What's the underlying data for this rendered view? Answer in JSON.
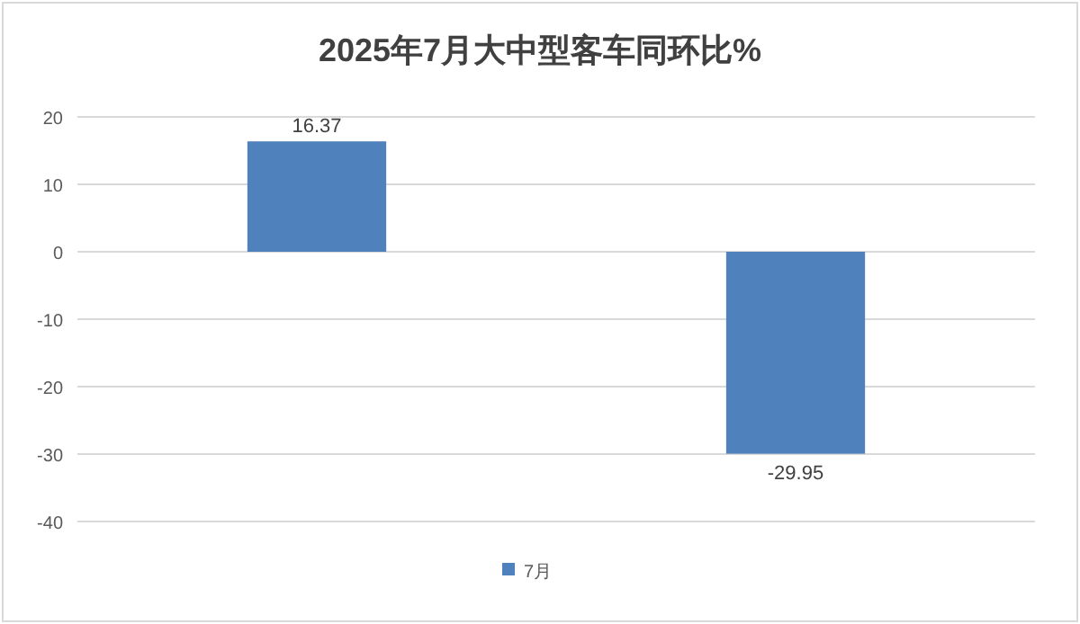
{
  "chart_data": {
    "type": "bar",
    "title": "2025年7月大中型客车同环比%",
    "categories": [
      null,
      null
    ],
    "series": [
      {
        "name": "7月",
        "color": "#4f81bd",
        "values": [
          16.37,
          -29.95
        ]
      }
    ],
    "ylim": [
      -40,
      20
    ],
    "yticks": [
      20,
      10,
      0,
      -10,
      -20,
      -30,
      -40
    ],
    "grid": "y",
    "legend": "bottom",
    "data_labels": true
  }
}
